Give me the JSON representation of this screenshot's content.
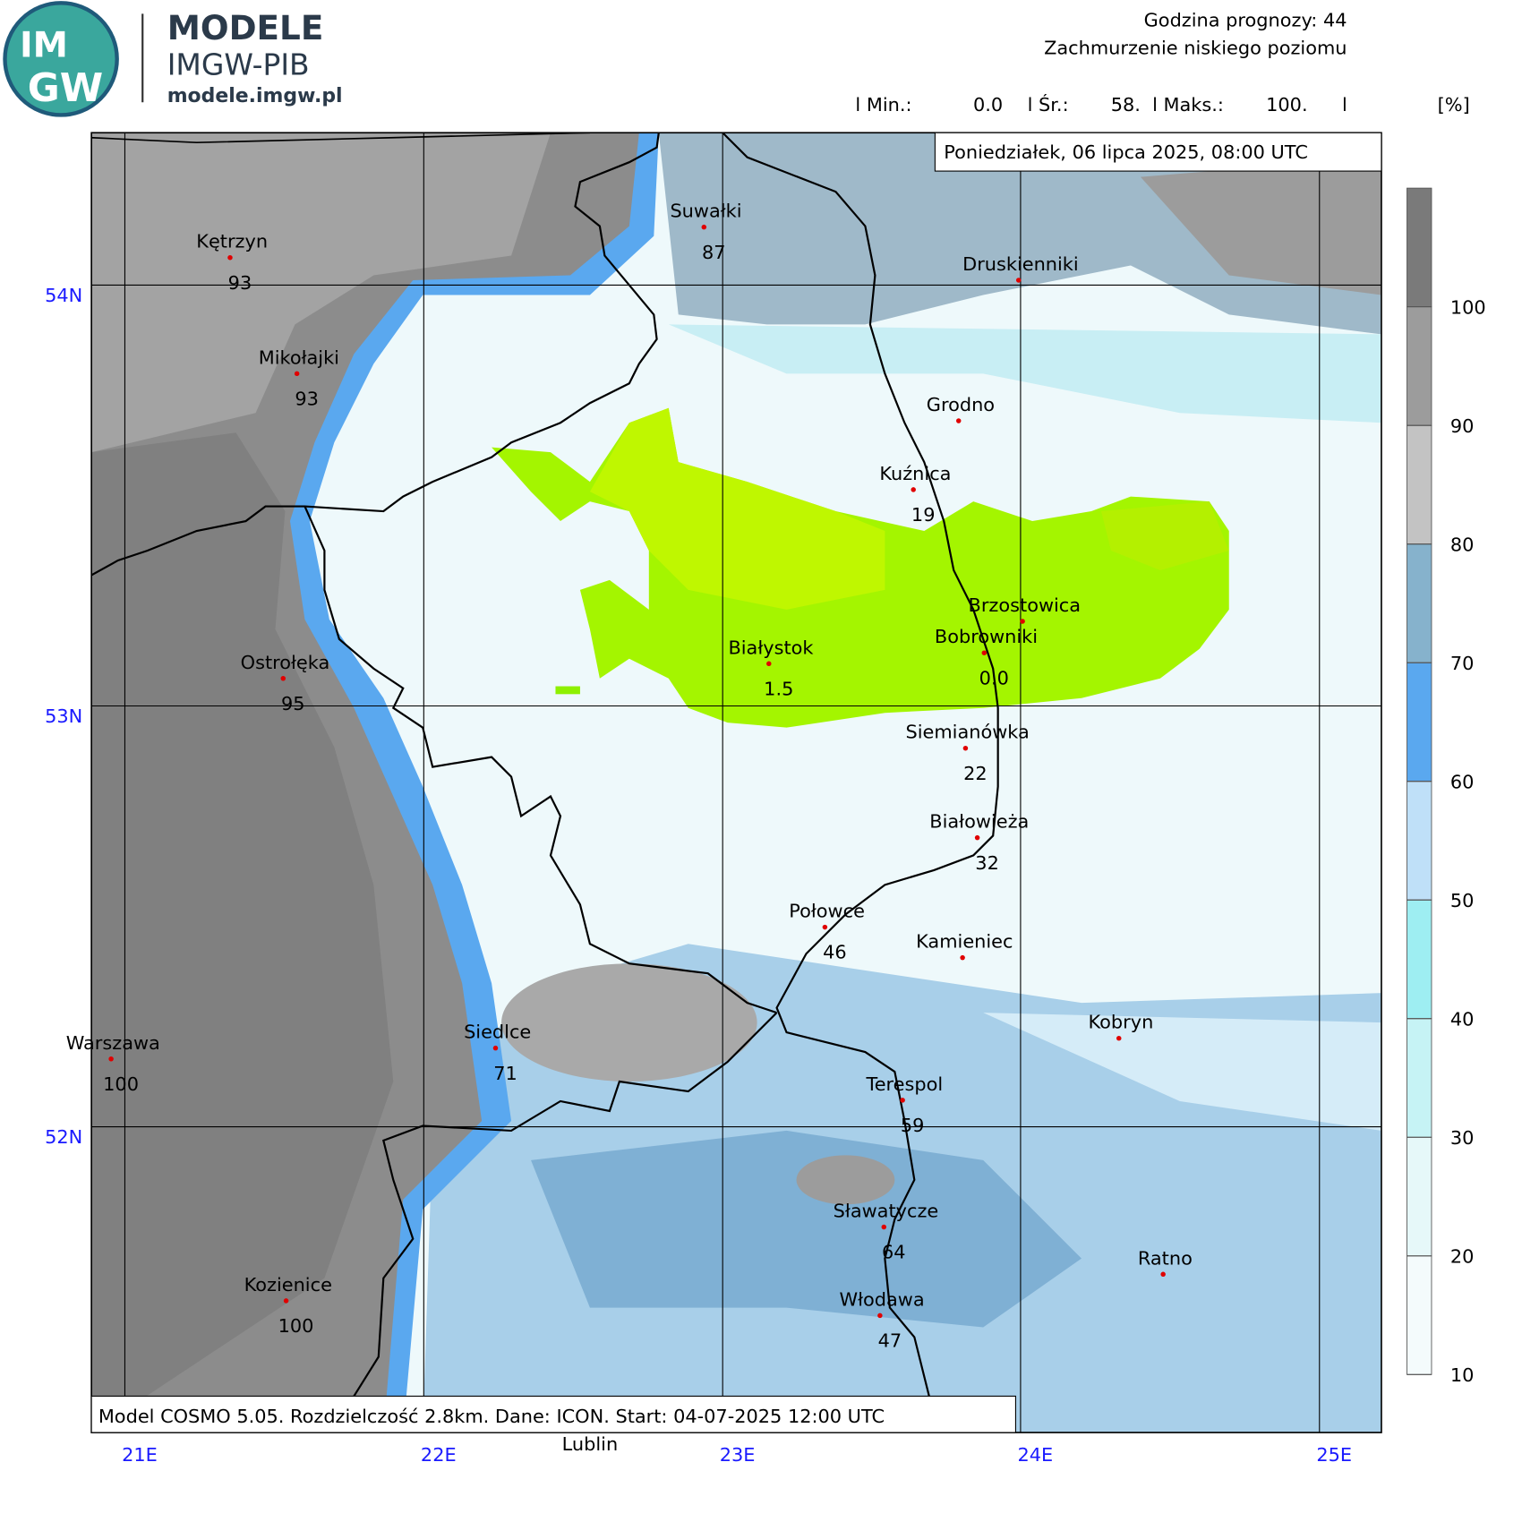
{
  "logo": {
    "mark_top": "IM",
    "mark_bottom": "GW",
    "title": "MODELE",
    "subtitle": "IMGW-PIB",
    "url": "modele.imgw.pl"
  },
  "header": {
    "forecast_hour": "Godzina prognozy: 44",
    "field": "Zachmurzenie niskiego poziomu"
  },
  "stats": [
    "l Min.:",
    "0.0",
    "l Śr.:",
    "58.",
    "l Maks.:",
    "100.",
    "l",
    "[%]"
  ],
  "date": "Poniedziałek, 06 lipca 2025, 08:00 UTC",
  "footer": "Model COSMO 5.05. Rozdzielczość 2.8km. Dane: ICON. Start: 04-07-2025 12:00 UTC",
  "lon_labels": [
    "21E",
    "22E",
    "23E",
    "24E",
    "25E"
  ],
  "lat_labels": [
    "54N",
    "53N",
    "52N"
  ],
  "colorbar": {
    "ticks": [
      10,
      20,
      30,
      40,
      50,
      60,
      70,
      80,
      90,
      100
    ],
    "colors": [
      "#f4fbfc",
      "#e6f8f9",
      "#c6f3f5",
      "#9eeef2",
      "#bfe0f8",
      "#5aa8ef",
      "#86b2cc",
      "#c3c3c3",
      "#9c9c9c",
      "#7a7a7a"
    ]
  },
  "places": [
    {
      "name": "Kętrzyn",
      "value": "93"
    },
    {
      "name": "Suwałki",
      "value": "87"
    },
    {
      "name": "Druskienniki"
    },
    {
      "name": "Mikołajki",
      "value": "93"
    },
    {
      "name": "Grodno"
    },
    {
      "name": "Kuźnica",
      "value": "19"
    },
    {
      "name": "Ostrołęka",
      "value": "95"
    },
    {
      "name": "Białystok",
      "value": "1.5"
    },
    {
      "name": "Brzostowica"
    },
    {
      "name": "Bobrowniki",
      "value": "0.0"
    },
    {
      "name": "Siemianówka",
      "value": "22"
    },
    {
      "name": "Białowieża",
      "value": "32"
    },
    {
      "name": "Połowce",
      "value": "46"
    },
    {
      "name": "Kamieniec"
    },
    {
      "name": "Warszawa",
      "value": "100"
    },
    {
      "name": "Siedlce",
      "value": "71"
    },
    {
      "name": "Kobryn"
    },
    {
      "name": "Terespol",
      "value": "59"
    },
    {
      "name": "Sławatycze",
      "value": "64"
    },
    {
      "name": "Ratno"
    },
    {
      "name": "Kozienice",
      "value": "100"
    },
    {
      "name": "Włodawa",
      "value": "47"
    }
  ],
  "outside_label": "Lublin"
}
